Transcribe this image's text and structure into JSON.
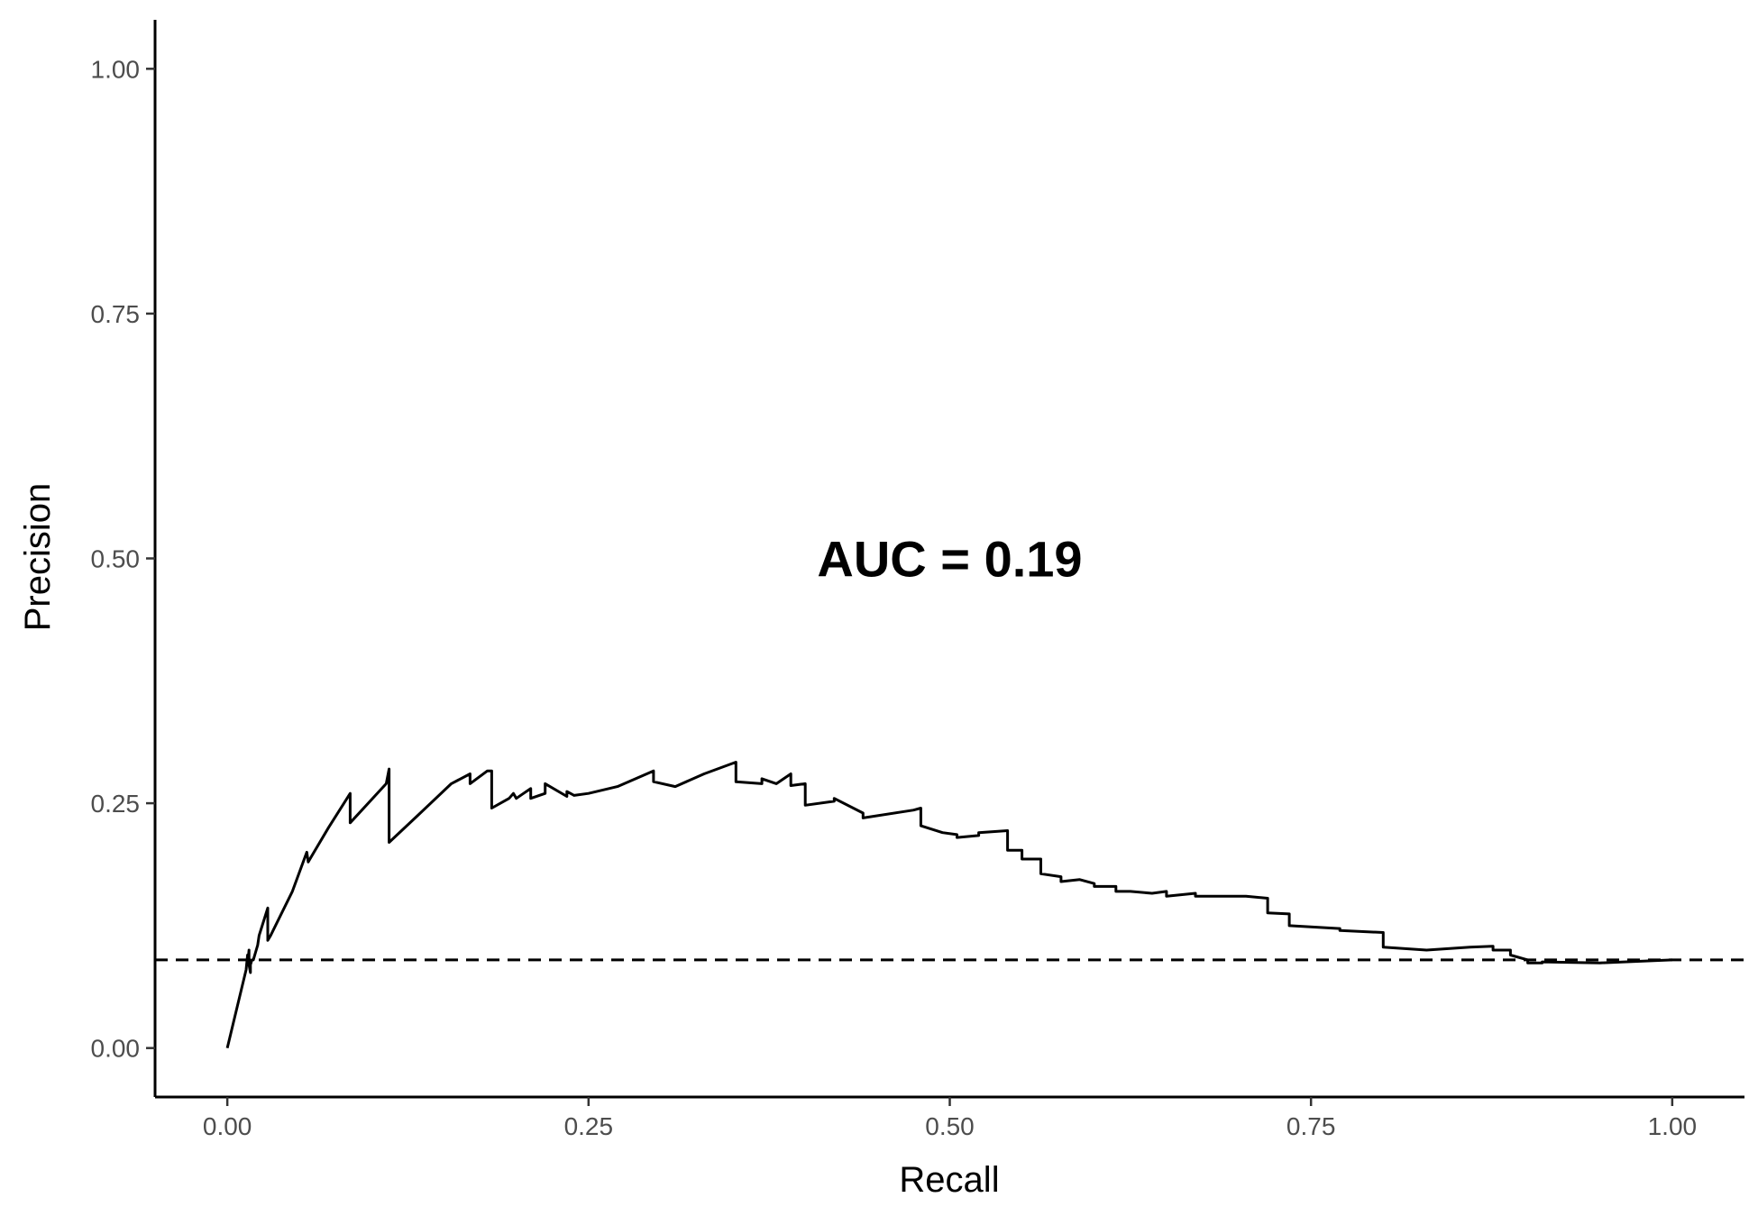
{
  "chart_data": {
    "type": "line",
    "xlabel": "Recall",
    "ylabel": "Precision",
    "xlim": [
      -0.05,
      1.05
    ],
    "ylim": [
      -0.05,
      1.05
    ],
    "x_ticks": [
      0.0,
      0.25,
      0.5,
      0.75,
      1.0
    ],
    "x_tick_labels": [
      "0.00",
      "0.25",
      "0.50",
      "0.75",
      "1.00"
    ],
    "y_ticks": [
      0.0,
      0.25,
      0.5,
      0.75,
      1.0
    ],
    "y_tick_labels": [
      "0.00",
      "0.25",
      "0.50",
      "0.75",
      "1.00"
    ],
    "grid": false,
    "annotation": {
      "text": "AUC =  0.19",
      "x": 0.5,
      "y": 0.5
    },
    "baseline": {
      "y": 0.09,
      "style": "dashed"
    },
    "series": [
      {
        "style": "solid",
        "x": [
          0.0,
          0.013,
          0.014,
          0.014,
          0.015,
          0.015,
          0.016,
          0.016,
          0.017,
          0.018,
          0.02,
          0.021,
          0.022,
          0.028,
          0.028,
          0.03,
          0.045,
          0.055,
          0.056,
          0.058,
          0.07,
          0.085,
          0.085,
          0.11,
          0.112,
          0.112,
          0.13,
          0.155,
          0.168,
          0.168,
          0.18,
          0.183,
          0.183,
          0.195,
          0.198,
          0.2,
          0.205,
          0.21,
          0.21,
          0.22,
          0.22,
          0.235,
          0.235,
          0.24,
          0.25,
          0.27,
          0.295,
          0.295,
          0.31,
          0.33,
          0.352,
          0.352,
          0.37,
          0.37,
          0.38,
          0.39,
          0.39,
          0.4,
          0.4,
          0.42,
          0.42,
          0.44,
          0.44,
          0.475,
          0.48,
          0.48,
          0.495,
          0.505,
          0.505,
          0.52,
          0.52,
          0.54,
          0.54,
          0.55,
          0.55,
          0.563,
          0.563,
          0.577,
          0.577,
          0.59,
          0.6,
          0.6,
          0.615,
          0.615,
          0.625,
          0.64,
          0.65,
          0.65,
          0.67,
          0.67,
          0.68,
          0.705,
          0.72,
          0.72,
          0.735,
          0.735,
          0.77,
          0.77,
          0.8,
          0.8,
          0.83,
          0.86,
          0.876,
          0.876,
          0.888,
          0.888,
          0.9,
          0.9,
          0.91,
          0.91,
          0.95,
          1.0
        ],
        "values": [
          0.0,
          0.08,
          0.095,
          0.085,
          0.1,
          0.085,
          0.077,
          0.085,
          0.09,
          0.09,
          0.1,
          0.105,
          0.115,
          0.143,
          0.11,
          0.115,
          0.16,
          0.2,
          0.19,
          0.195,
          0.225,
          0.26,
          0.23,
          0.27,
          0.285,
          0.21,
          0.235,
          0.27,
          0.28,
          0.27,
          0.283,
          0.283,
          0.245,
          0.255,
          0.26,
          0.255,
          0.26,
          0.265,
          0.255,
          0.26,
          0.27,
          0.257,
          0.262,
          0.258,
          0.26,
          0.267,
          0.283,
          0.272,
          0.267,
          0.28,
          0.292,
          0.272,
          0.27,
          0.275,
          0.27,
          0.28,
          0.268,
          0.27,
          0.248,
          0.252,
          0.255,
          0.24,
          0.235,
          0.243,
          0.245,
          0.227,
          0.22,
          0.218,
          0.215,
          0.217,
          0.22,
          0.222,
          0.202,
          0.202,
          0.193,
          0.193,
          0.178,
          0.175,
          0.17,
          0.172,
          0.168,
          0.165,
          0.165,
          0.16,
          0.16,
          0.158,
          0.16,
          0.155,
          0.158,
          0.155,
          0.155,
          0.155,
          0.153,
          0.138,
          0.137,
          0.125,
          0.122,
          0.12,
          0.118,
          0.103,
          0.1,
          0.103,
          0.104,
          0.1,
          0.1,
          0.095,
          0.09,
          0.087,
          0.087,
          0.088,
          0.087,
          0.09
        ]
      }
    ]
  }
}
